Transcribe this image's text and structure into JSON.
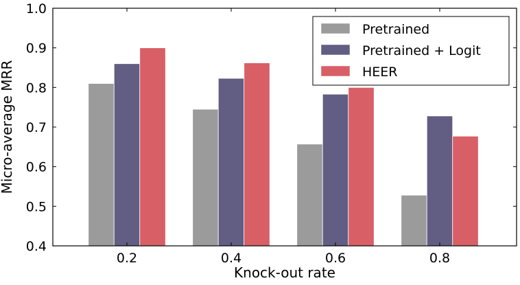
{
  "chart_data": {
    "type": "bar",
    "title": "",
    "xlabel": "Knock-out rate",
    "ylabel": "Micro-average MRR",
    "categories": [
      "0.2",
      "0.4",
      "0.6",
      "0.8"
    ],
    "ylim": [
      0.4,
      1.0
    ],
    "yticks": [
      "0.4",
      "0.5",
      "0.6",
      "0.7",
      "0.8",
      "0.9",
      "1.0"
    ],
    "yticks_values": [
      0.4,
      0.5,
      0.6,
      0.7,
      0.8,
      0.9,
      1.0
    ],
    "grid": false,
    "legend_position": "top-right",
    "series": [
      {
        "name": "Pretrained",
        "color": "#9b9b9b",
        "values": [
          0.81,
          0.745,
          0.657,
          0.528
        ]
      },
      {
        "name": "Pretrained + Logit",
        "color": "#625d82",
        "values": [
          0.86,
          0.823,
          0.783,
          0.728
        ]
      },
      {
        "name": "HEER",
        "color": "#d95f66",
        "values": [
          0.9,
          0.862,
          0.8,
          0.677
        ]
      }
    ]
  }
}
